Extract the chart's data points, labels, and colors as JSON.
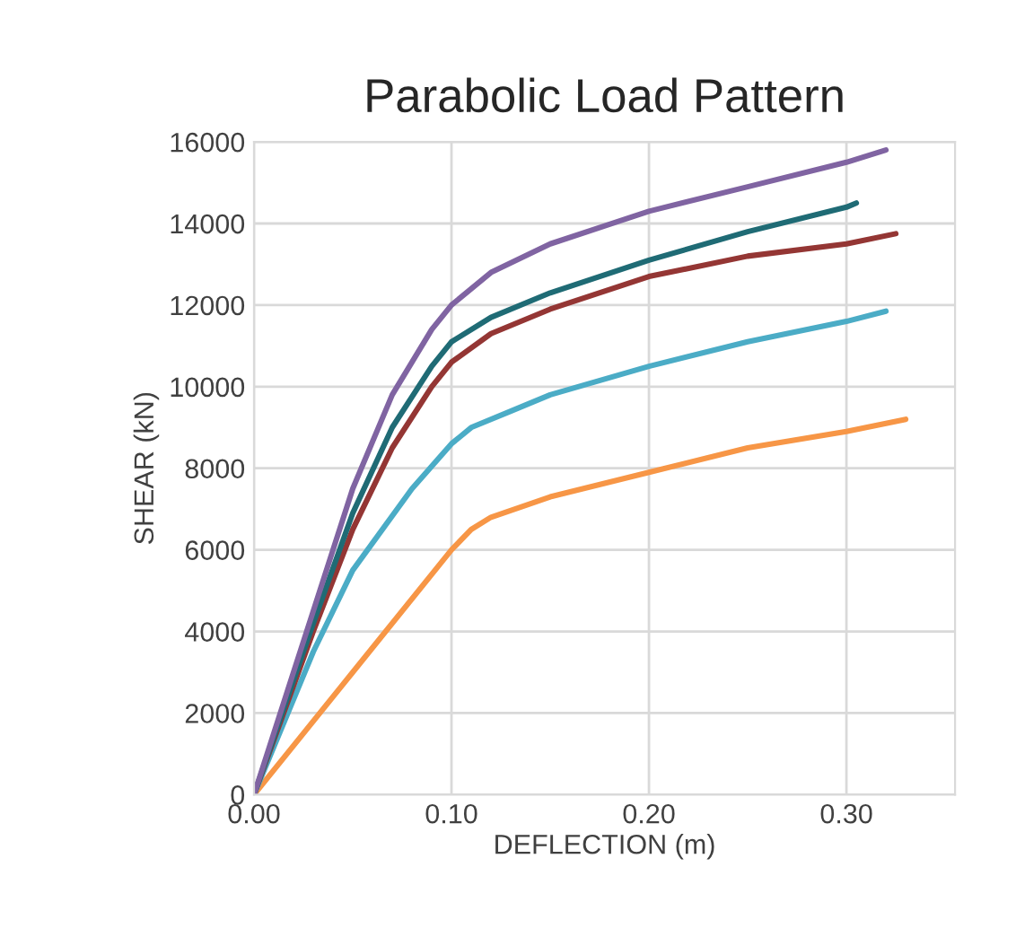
{
  "chart_data": {
    "type": "line",
    "title": "Parabolic Load Pattern",
    "xlabel": "DEFLECTION (m)",
    "ylabel": "SHEAR (kN)",
    "xlim": [
      0,
      0.355
    ],
    "xticks": [
      {
        "value": 0,
        "label": "0.00"
      },
      {
        "value": 0.1,
        "label": "0.10"
      },
      {
        "value": 0.2,
        "label": "0.20"
      },
      {
        "value": 0.3,
        "label": "0.30"
      }
    ],
    "ylim": [
      0,
      16000
    ],
    "yticks": [
      0,
      2000,
      4000,
      6000,
      8000,
      10000,
      12000,
      14000,
      16000
    ],
    "grid": true,
    "legend": false,
    "marker": "none",
    "line_style": "solid",
    "series": [
      {
        "color": "#f79646",
        "x": [
          0,
          0.05,
          0.1,
          0.11,
          0.12,
          0.15,
          0.2,
          0.25,
          0.3,
          0.33
        ],
        "values": [
          0,
          3000,
          6000,
          6500,
          6800,
          7300,
          7900,
          8500,
          8900,
          9200
        ]
      },
      {
        "color": "#4bacc6",
        "x": [
          0,
          0.03,
          0.05,
          0.08,
          0.1,
          0.11,
          0.13,
          0.15,
          0.2,
          0.25,
          0.3,
          0.32
        ],
        "values": [
          0,
          3500,
          5500,
          7500,
          8600,
          9000,
          9400,
          9800,
          10500,
          11100,
          11600,
          11850
        ]
      },
      {
        "color": "#943634",
        "x": [
          0,
          0.03,
          0.05,
          0.07,
          0.09,
          0.1,
          0.12,
          0.15,
          0.2,
          0.25,
          0.3,
          0.325
        ],
        "values": [
          0,
          4000,
          6500,
          8500,
          10000,
          10600,
          11300,
          11900,
          12700,
          13200,
          13500,
          13750
        ]
      },
      {
        "color": "#1f6b75",
        "x": [
          0,
          0.03,
          0.05,
          0.07,
          0.09,
          0.1,
          0.12,
          0.15,
          0.2,
          0.25,
          0.3,
          0.305
        ],
        "values": [
          0,
          4200,
          6900,
          9000,
          10500,
          11100,
          11700,
          12300,
          13100,
          13800,
          14400,
          14500
        ]
      },
      {
        "color": "#8064a2",
        "x": [
          0,
          0.03,
          0.05,
          0.07,
          0.09,
          0.1,
          0.12,
          0.15,
          0.2,
          0.25,
          0.3,
          0.32
        ],
        "values": [
          0,
          4500,
          7500,
          9800,
          11400,
          12000,
          12800,
          13500,
          14300,
          14900,
          15500,
          15800
        ]
      }
    ]
  }
}
